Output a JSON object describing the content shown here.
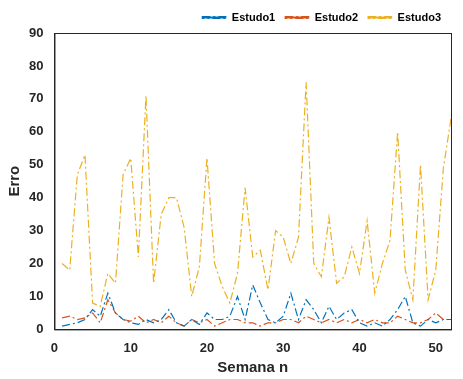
{
  "chart_data": {
    "type": "line",
    "x_label": "Semana n",
    "y_label": "Erro",
    "x": [
      1,
      2,
      3,
      4,
      5,
      6,
      7,
      8,
      9,
      10,
      11,
      12,
      13,
      14,
      15,
      16,
      17,
      18,
      19,
      20,
      21,
      22,
      23,
      24,
      25,
      26,
      27,
      28,
      29,
      30,
      31,
      32,
      33,
      34,
      35,
      36,
      37,
      38,
      39,
      40,
      41,
      42,
      43,
      44,
      45,
      46,
      47,
      48,
      49,
      50,
      51,
      52
    ],
    "series": [
      {
        "name": "Estudo1",
        "color": "#0072bd",
        "line_style": "dashdot",
        "marker": "none",
        "values": [
          1,
          1.5,
          2,
          3,
          6,
          4,
          11,
          5,
          3,
          2,
          1.5,
          3,
          2,
          3,
          6,
          2,
          1,
          3,
          1.5,
          5,
          3,
          3,
          4,
          10,
          3,
          13.5,
          8,
          3,
          2,
          4,
          11,
          3,
          9,
          6,
          2,
          7,
          3,
          5,
          6,
          2,
          1,
          2,
          1,
          3,
          6,
          10,
          2,
          1,
          3,
          2,
          3,
          3
        ]
      },
      {
        "name": "Estudo2",
        "color": "#d95319",
        "line_style": "dashdot",
        "marker": "none",
        "values": [
          3.5,
          4,
          3,
          3.5,
          5,
          2,
          9,
          5,
          3,
          2.5,
          4,
          2,
          3,
          2,
          4,
          2,
          1,
          3,
          2,
          3,
          1,
          2,
          3,
          3,
          2,
          2,
          1,
          2,
          2,
          3,
          3,
          2,
          4,
          3,
          2,
          3,
          2,
          3,
          2,
          3,
          2,
          3,
          2,
          2,
          4,
          3,
          2,
          2,
          3,
          5,
          3,
          3
        ]
      },
      {
        "name": "Estudo3",
        "color": "#edb120",
        "line_style": "dashdot",
        "marker": "none",
        "values": [
          20,
          18,
          47,
          53,
          8,
          7,
          17,
          14,
          47,
          52,
          22,
          71,
          14,
          35,
          40,
          40,
          31,
          10,
          19,
          52,
          20,
          13,
          8,
          17,
          43,
          22,
          24,
          12,
          30,
          28,
          20,
          28,
          75,
          20,
          16,
          34,
          14,
          16,
          25,
          17,
          33,
          11,
          20,
          27,
          60,
          18,
          9,
          50,
          9,
          18,
          49,
          64
        ]
      }
    ],
    "xlim": [
      0,
      52
    ],
    "xticks": [
      0,
      10,
      20,
      30,
      40,
      50
    ],
    "ylim": [
      0,
      90
    ],
    "yticks": [
      0,
      10,
      20,
      30,
      40,
      50,
      60,
      70,
      80,
      90
    ],
    "grid": false,
    "legend": "upper right"
  }
}
